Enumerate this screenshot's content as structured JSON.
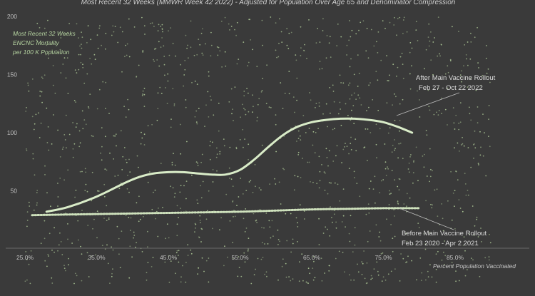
{
  "chart_data": {
    "type": "scatter",
    "title": "Most Recent 32 Weeks (MMWR Week 42 2022) - Adjusted for Population Over Age 65 and Denominator Compression",
    "ylabel_lines": [
      "Most Recent 32 Weeks",
      "ENCNC Mortality",
      "per 100 K Population"
    ],
    "xlabel": "Percent Population Vaccinated",
    "xlim": [
      23,
      92
    ],
    "ylim": [
      -33,
      203
    ],
    "x_ticks": [
      "25.0%",
      "35.0%",
      "45.0%",
      "55.0%",
      "65.0%",
      "75.0%",
      "85.0%"
    ],
    "x_tick_values": [
      25,
      35,
      45,
      55,
      65,
      75,
      85
    ],
    "y_ticks": [
      "50",
      "100",
      "150",
      "200"
    ],
    "y_tick_values": [
      50,
      100,
      150,
      200
    ],
    "grid": false,
    "colors": {
      "background": "#3a3a3a",
      "points": "#b9d6a0",
      "after_curve": "#d9ecc8",
      "before_curve": "#cfe2bd",
      "leader_line": "#bdbdbd"
    },
    "series": [
      {
        "name": "After Main Vaccine Rollout",
        "date_range": "Feb 27 - Oct 22 2022",
        "style": "solid",
        "x": [
          28,
          31,
          35,
          39,
          41,
          43,
          45,
          47,
          49,
          51,
          53,
          55,
          57,
          59,
          61,
          63,
          65,
          67,
          69,
          71,
          73,
          75,
          77,
          79
        ],
        "y": [
          32,
          36,
          45,
          57,
          62,
          65,
          66,
          66,
          65,
          64,
          64,
          68,
          77,
          88,
          98,
          105,
          109,
          111,
          112,
          112,
          111,
          109,
          105,
          100
        ]
      },
      {
        "name": "Before Main Vaccine Rollout",
        "date_range": "Feb 23 2020 - Apr 2 2021",
        "style": "dotted",
        "x": [
          26,
          30,
          35,
          40,
          45,
          50,
          55,
          60,
          65,
          70,
          75,
          80
        ],
        "y": [
          29,
          29.5,
          30,
          30.5,
          31,
          31.5,
          32,
          33,
          34,
          34.5,
          35,
          35
        ]
      }
    ],
    "scatter_points": {
      "count": 1300,
      "x_range": [
        25,
        90
      ],
      "y_range": [
        -30,
        200
      ],
      "note": "dense scatter of jurisdiction-week observations"
    }
  },
  "annotations": {
    "after": {
      "line1": "After Main Vaccine Rollout",
      "line2": "Feb 27 - Oct 22 2022"
    },
    "before": {
      "line1": "Before Main Vaccine Rollout",
      "line2": "Feb 23 2020 - Apr 2 2021"
    }
  }
}
